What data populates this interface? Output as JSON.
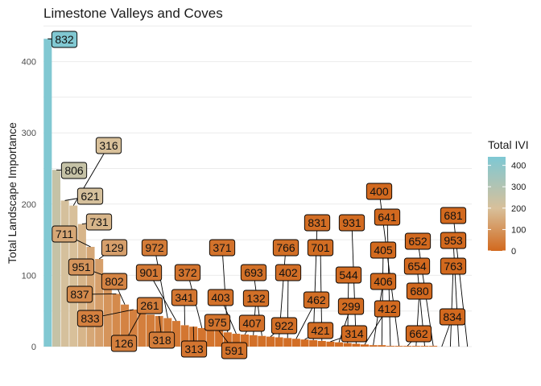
{
  "chart_data": {
    "type": "bar",
    "title": "Limestone Valleys and Coves",
    "xlabel": "",
    "ylabel": "Total Landscape Importance",
    "ylim": [
      0,
      450
    ],
    "y_ticks": [
      0,
      100,
      200,
      300,
      400
    ],
    "grid": true,
    "legend": {
      "title": "Total IVI",
      "position": "right",
      "ticks": [
        0,
        100,
        200,
        300,
        400
      ],
      "colors": {
        "low": "#d2691e",
        "mid": "#d8c09a",
        "high": "#7ec8d4"
      }
    },
    "categories": [
      "832",
      "806",
      "621",
      "316",
      "731",
      "711",
      "129",
      "951",
      "837",
      "802",
      "833",
      "126",
      "261",
      "318",
      "972",
      "901",
      "341",
      "313",
      "372",
      "975",
      "591",
      "371",
      "403",
      "407",
      "132",
      "693",
      "922",
      "766",
      "402",
      "462",
      "421",
      "831",
      "701",
      "314",
      "299",
      "544",
      "931",
      "412",
      "406",
      "405",
      "641",
      "400",
      "662",
      "680",
      "654",
      "652",
      "834",
      "763",
      "953",
      "681"
    ],
    "values": [
      432,
      248,
      205,
      198,
      172,
      140,
      123,
      98,
      74,
      59,
      52,
      50,
      45,
      43,
      40,
      36,
      30,
      28,
      26,
      24,
      22,
      20,
      18,
      17,
      16,
      15,
      14,
      13,
      12,
      11,
      10,
      9,
      8,
      7,
      6,
      5,
      4,
      3,
      2,
      2,
      1,
      1,
      1,
      1,
      1,
      1,
      0,
      0,
      0,
      0
    ]
  }
}
